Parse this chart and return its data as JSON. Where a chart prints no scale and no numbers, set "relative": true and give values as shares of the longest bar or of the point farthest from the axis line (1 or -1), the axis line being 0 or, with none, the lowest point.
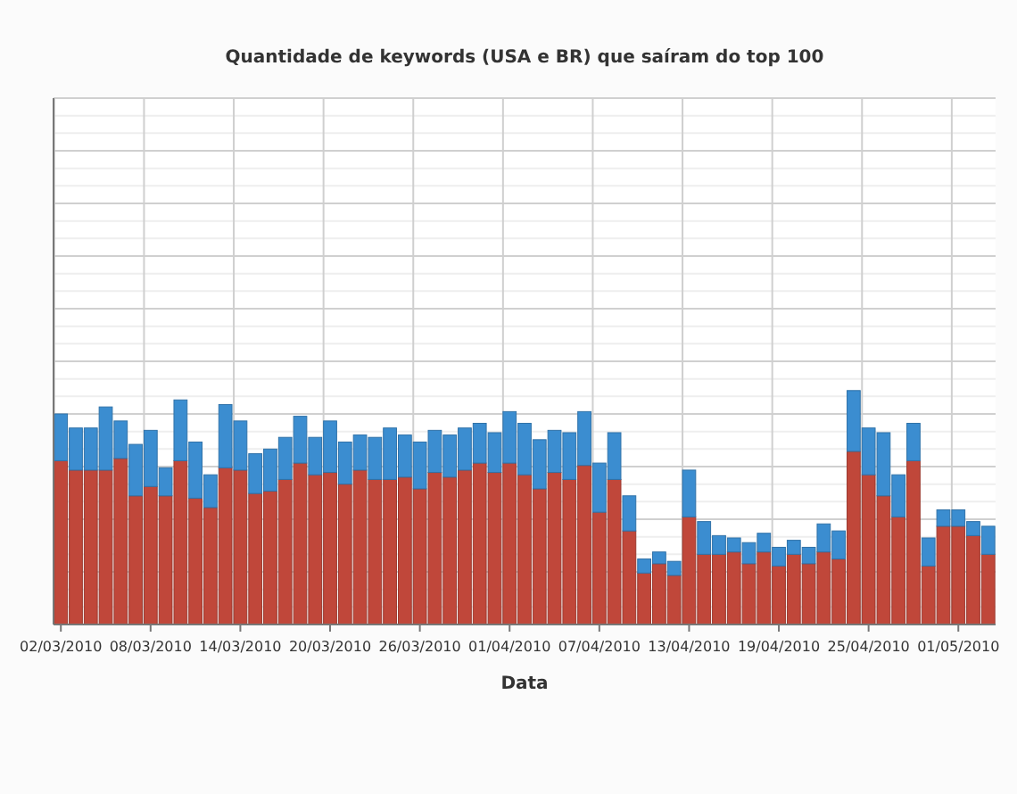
{
  "chart_data": {
    "type": "bar",
    "title": "Quantidade de keywords (USA e BR) que saíram do top 100",
    "xlabel": "Data",
    "relative": true,
    "stacked": true,
    "grid": true,
    "categories": [
      "02/03/2010",
      null,
      null,
      null,
      null,
      null,
      "08/03/2010",
      null,
      null,
      null,
      null,
      null,
      "14/03/2010",
      null,
      null,
      null,
      null,
      null,
      "20/03/2010",
      null,
      null,
      null,
      null,
      null,
      "26/03/2010",
      null,
      null,
      null,
      null,
      null,
      "01/04/2010",
      null,
      null,
      null,
      null,
      null,
      "07/04/2010",
      null,
      null,
      null,
      null,
      null,
      "13/04/2010",
      null,
      null,
      null,
      null,
      null,
      "19/04/2010",
      null,
      null,
      null,
      null,
      null,
      "25/04/2010",
      null,
      null,
      null,
      null,
      null,
      "01/05/2010",
      null,
      null
    ],
    "series": [
      {
        "color": "#c0473a",
        "values": [
          0.7,
          0.66,
          0.66,
          0.66,
          0.71,
          0.55,
          0.59,
          0.55,
          0.7,
          0.54,
          0.5,
          0.67,
          0.66,
          0.56,
          0.57,
          0.62,
          0.69,
          0.64,
          0.65,
          0.6,
          0.66,
          0.62,
          0.62,
          0.63,
          0.58,
          0.65,
          0.63,
          0.66,
          0.69,
          0.65,
          0.69,
          0.64,
          0.58,
          0.65,
          0.62,
          0.68,
          0.48,
          0.62,
          0.4,
          0.22,
          0.26,
          0.21,
          0.46,
          0.3,
          0.3,
          0.31,
          0.26,
          0.31,
          0.25,
          0.3,
          0.26,
          0.31,
          0.28,
          0.74,
          0.64,
          0.55,
          0.46,
          0.7,
          0.25,
          0.42,
          0.42,
          0.38,
          0.3
        ]
      },
      {
        "color": "#3b8dd0",
        "values": [
          0.2,
          0.18,
          0.18,
          0.27,
          0.16,
          0.22,
          0.24,
          0.12,
          0.26,
          0.24,
          0.14,
          0.27,
          0.21,
          0.17,
          0.18,
          0.18,
          0.2,
          0.16,
          0.22,
          0.18,
          0.15,
          0.18,
          0.22,
          0.18,
          0.2,
          0.18,
          0.18,
          0.18,
          0.17,
          0.17,
          0.22,
          0.22,
          0.21,
          0.18,
          0.2,
          0.23,
          0.21,
          0.2,
          0.15,
          0.06,
          0.05,
          0.06,
          0.2,
          0.14,
          0.08,
          0.06,
          0.09,
          0.08,
          0.08,
          0.06,
          0.07,
          0.12,
          0.12,
          0.26,
          0.2,
          0.27,
          0.18,
          0.16,
          0.12,
          0.07,
          0.07,
          0.06,
          0.12
        ]
      }
    ]
  }
}
